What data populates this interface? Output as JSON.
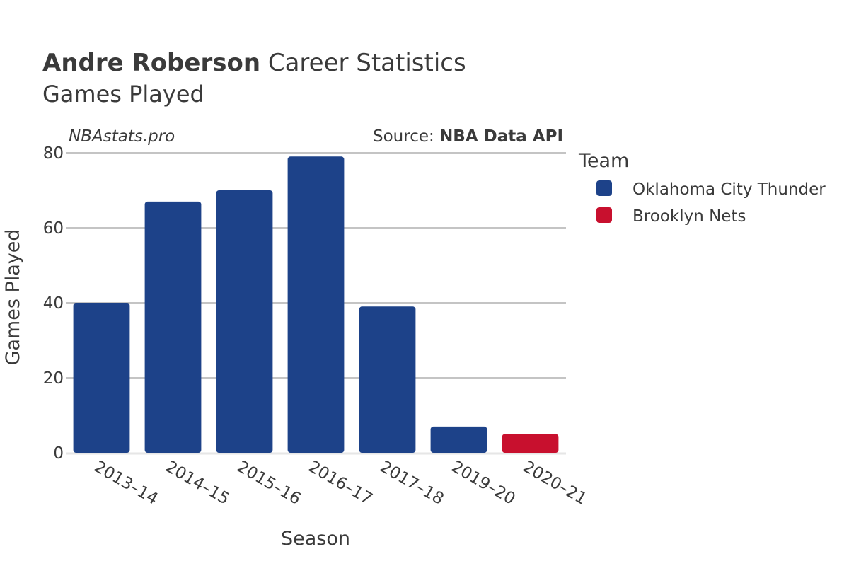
{
  "title": {
    "bold": "Andre Roberson",
    "rest": " Career Statistics",
    "subtitle": "Games Played"
  },
  "watermark": "NBAstats.pro",
  "source": {
    "prefix": "Source: ",
    "name": "NBA Data API"
  },
  "legend": {
    "title": "Team",
    "items": [
      {
        "label": "Oklahoma City Thunder",
        "color": "#1d4289"
      },
      {
        "label": "Brooklyn Nets",
        "color": "#c8102e"
      }
    ]
  },
  "chart_data": {
    "type": "bar",
    "title": "Andre Roberson Career Statistics — Games Played",
    "xlabel": "Season",
    "ylabel": "Games Played",
    "ylim": [
      0,
      80
    ],
    "yticks": [
      0,
      20,
      40,
      60,
      80
    ],
    "categories": [
      "2013–14",
      "2014–15",
      "2015–16",
      "2016–17",
      "2017–18",
      "2019–20",
      "2020–21"
    ],
    "values": [
      40,
      67,
      70,
      79,
      39,
      7,
      5
    ],
    "teams": [
      "Oklahoma City Thunder",
      "Oklahoma City Thunder",
      "Oklahoma City Thunder",
      "Oklahoma City Thunder",
      "Oklahoma City Thunder",
      "Oklahoma City Thunder",
      "Brooklyn Nets"
    ],
    "grid": true,
    "legend_position": "right"
  }
}
